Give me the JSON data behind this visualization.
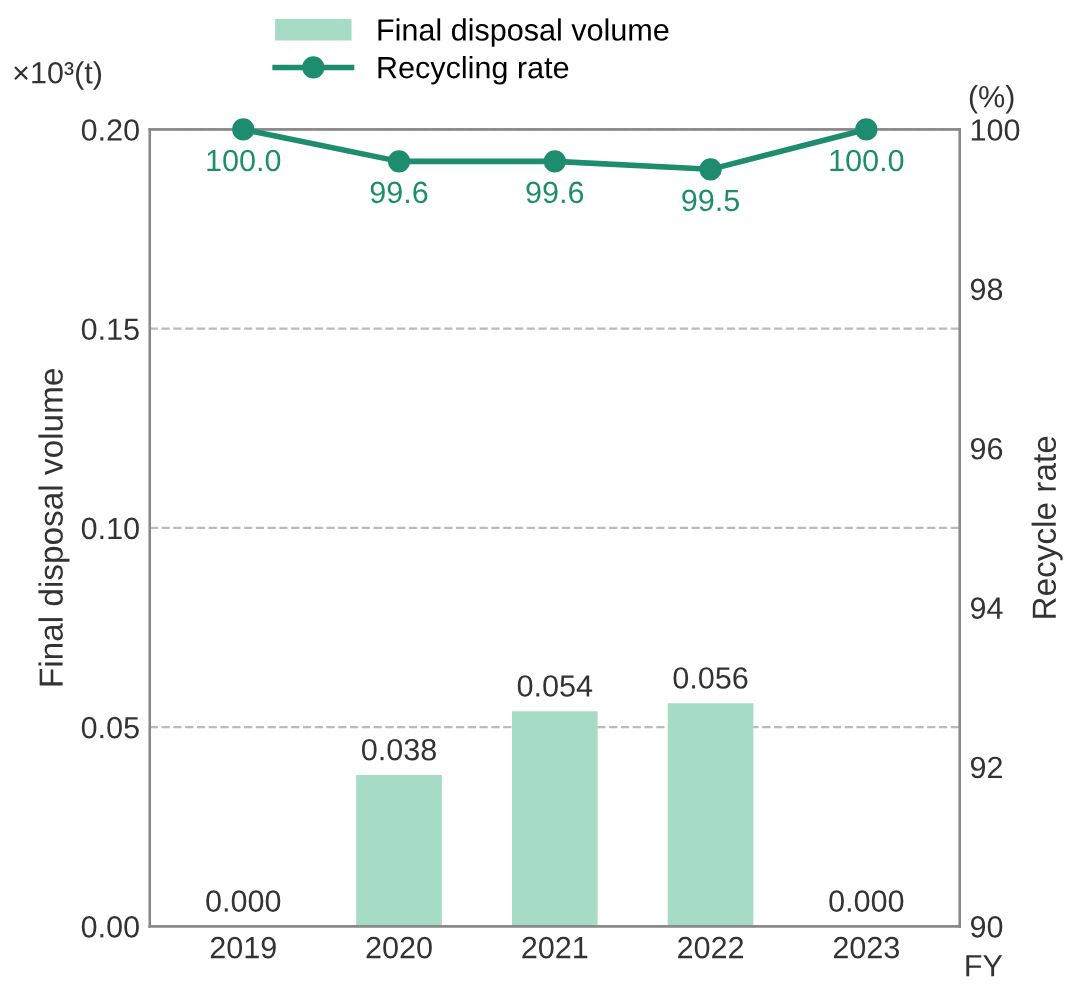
{
  "chart_data": {
    "type": "bar",
    "categories": [
      "2019",
      "2020",
      "2021",
      "2022",
      "2023"
    ],
    "xlabel": "FY",
    "ylabel": "Final disposal volume",
    "y2label": "Recycle rate",
    "series": [
      {
        "name": "Final disposal volume",
        "color": "#a6dbc6",
        "values": [
          0.0,
          0.038,
          0.054,
          0.056,
          0.0
        ],
        "value_labels": [
          "0.000",
          "0.038",
          "0.054",
          "0.056",
          "0.000"
        ]
      },
      {
        "name": "Recycling rate",
        "type": "line",
        "axis": "y2",
        "color": "#1e8c6e",
        "values": [
          100.0,
          99.6,
          99.6,
          99.5,
          100.0
        ],
        "value_labels": [
          "100.0",
          "99.6",
          "99.6",
          "99.5",
          "100.0"
        ]
      }
    ],
    "ylim": [
      0,
      0.2
    ],
    "yticks": [
      {
        "value": 0,
        "label": "0.00"
      },
      {
        "value": 0.05,
        "label": "0.05"
      },
      {
        "value": 0.1,
        "label": "0.10"
      },
      {
        "value": 0.15,
        "label": "0.15"
      },
      {
        "value": 0.2,
        "label": "0.20"
      }
    ],
    "y2lim": [
      90,
      100
    ],
    "y2ticks": [
      90,
      92,
      94,
      96,
      98,
      100
    ],
    "grid": "y",
    "legend": "top left",
    "marker": "circle",
    "line_style": "solid",
    "annotations": [
      "×10³(t)",
      "(%)"
    ]
  }
}
